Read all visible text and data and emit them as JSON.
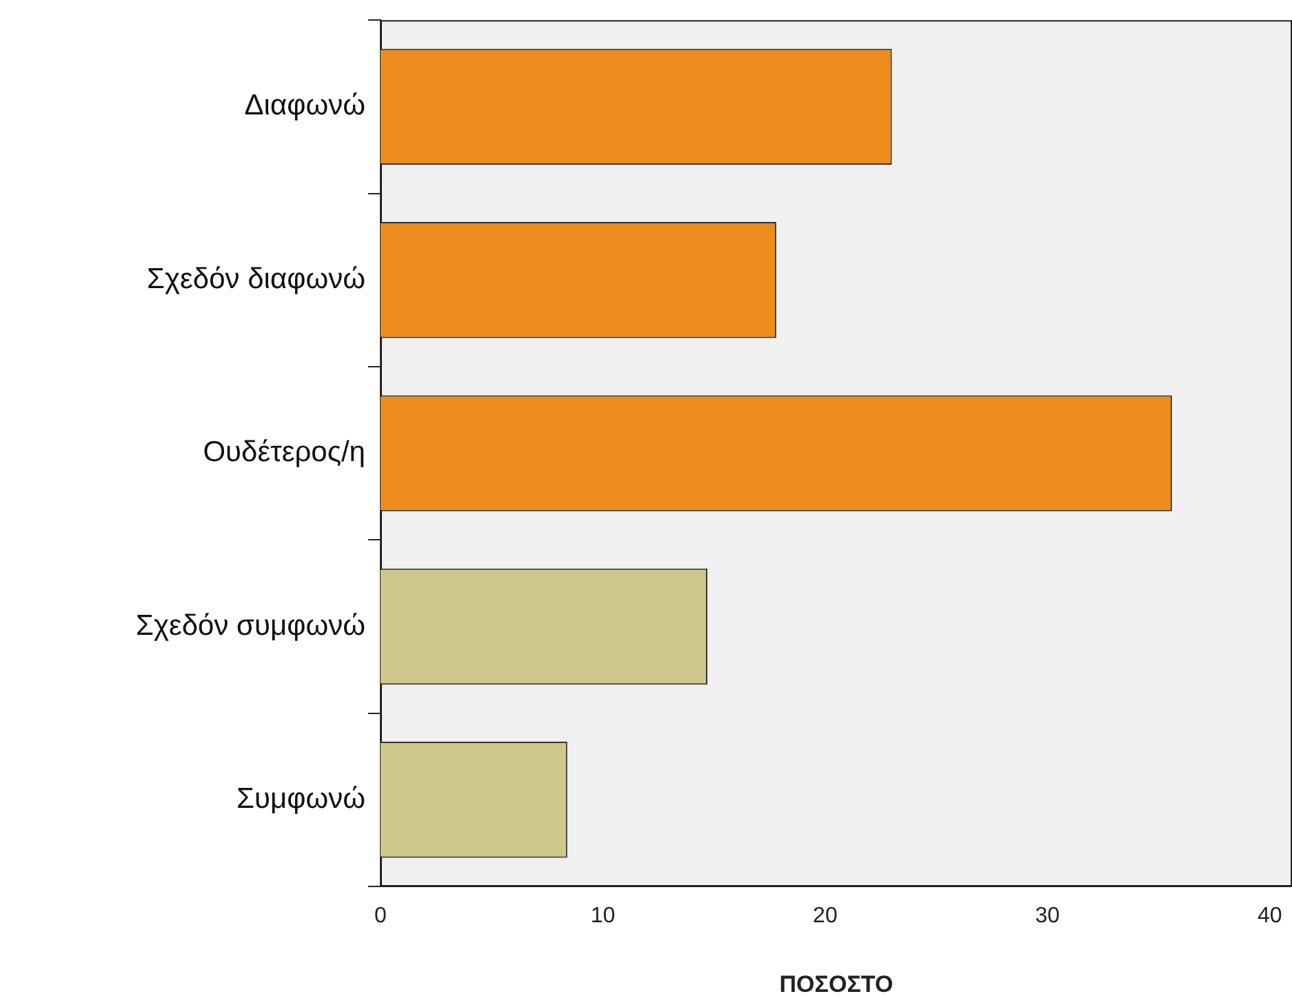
{
  "chart_data": {
    "type": "bar",
    "orientation": "horizontal",
    "xlabel": "ΠΟΣΟΣΤΟ",
    "categories": [
      "Διαφωνώ",
      "Σχεδόν διαφωνώ",
      "Ουδέτερος/η",
      "Σχεδόν συμφωνώ",
      "Συμφωνώ"
    ],
    "values": [
      23.0,
      17.8,
      35.6,
      14.7,
      8.4
    ],
    "colors": [
      "#ec8c1c",
      "#ec8c1c",
      "#ec8c1c",
      "#cfc78a",
      "#cfc78a"
    ],
    "xlim": [
      0,
      41
    ],
    "xticks": [
      0,
      10,
      20,
      30,
      40
    ],
    "grid": false,
    "legend": false
  }
}
